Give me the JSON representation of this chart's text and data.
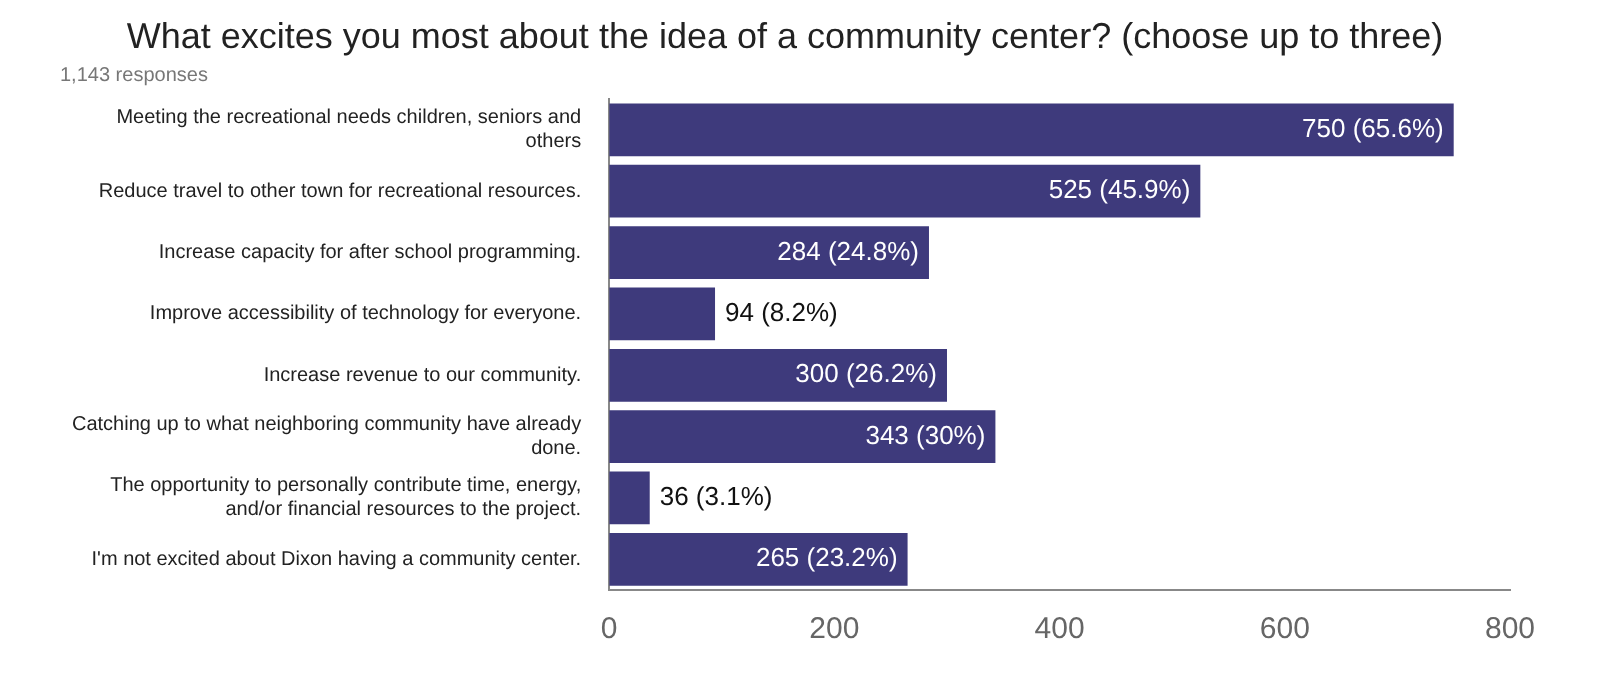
{
  "chart_data": {
    "type": "bar",
    "orientation": "horizontal",
    "title": "What excites you most about the idea of a community center? (choose up to three)",
    "subtitle": "1,143 responses",
    "categories": [
      "Meeting the recreational needs children, seniors and others",
      "Reduce travel to other town for recreational resources.",
      "Increase capacity for after school programming.",
      "Improve accessibility of technology for everyone.",
      "Increase revenue to our community.",
      "Catching up to what neighboring community have already done.",
      "The opportunity to personally contribute time, energy, and/or financial resources to the project.",
      "I'm not excited about Dixon having a community center."
    ],
    "values": [
      750,
      525,
      284,
      94,
      300,
      343,
      36,
      265
    ],
    "value_labels": [
      "750 (65.6%)",
      "525 (45.9%)",
      "284 (24.8%)",
      "94 (8.2%)",
      "300 (26.2%)",
      "343 (30%)",
      "36 (3.1%)",
      "265 (23.2%)"
    ],
    "color": "#3e3a7c",
    "xlim": [
      0,
      800
    ],
    "xticks": [
      0,
      200,
      400,
      600,
      800
    ],
    "grid": false,
    "legend": false
  }
}
